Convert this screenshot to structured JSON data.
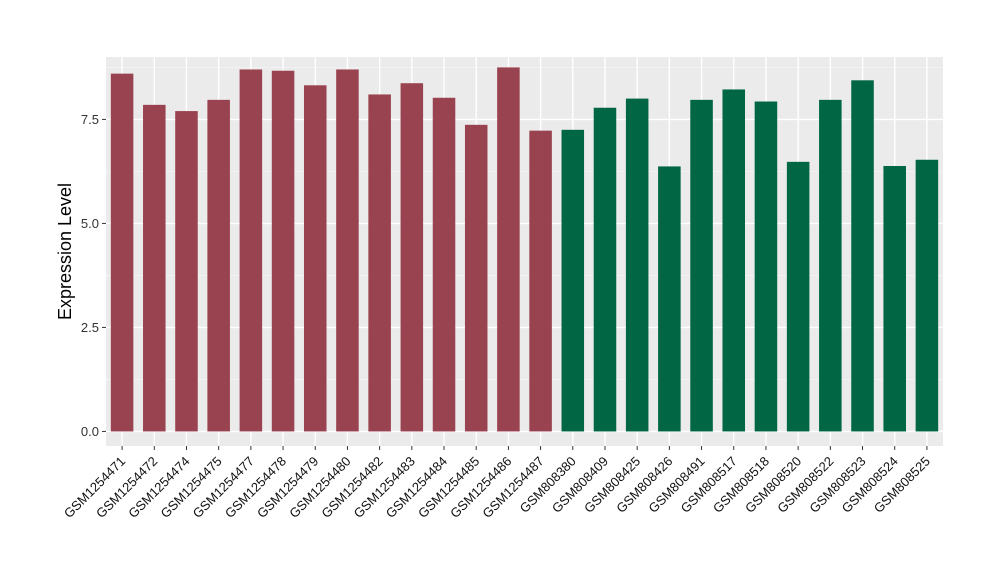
{
  "chart_data": {
    "type": "bar",
    "title": "",
    "xlabel": "",
    "ylabel": "Expression Level",
    "ylim": [
      -0.35,
      9.0
    ],
    "yticks": [
      0.0,
      2.5,
      5.0,
      7.5
    ],
    "ytick_labels": [
      "0.0",
      "2.5",
      "5.0",
      "7.5"
    ],
    "grid": true,
    "legend": "none",
    "categories": [
      "GSM1254471",
      "GSM1254472",
      "GSM1254474",
      "GSM1254475",
      "GSM1254477",
      "GSM1254478",
      "GSM1254479",
      "GSM1254480",
      "GSM1254482",
      "GSM1254483",
      "GSM1254484",
      "GSM1254485",
      "GSM1254486",
      "GSM1254487",
      "GSM808380",
      "GSM808409",
      "GSM808425",
      "GSM808426",
      "GSM808491",
      "GSM808517",
      "GSM808518",
      "GSM808520",
      "GSM808522",
      "GSM808523",
      "GSM808524",
      "GSM808525"
    ],
    "values": [
      8.6,
      7.85,
      7.7,
      7.97,
      8.7,
      8.67,
      8.32,
      8.7,
      8.1,
      8.37,
      8.02,
      7.37,
      8.75,
      7.23,
      7.25,
      7.78,
      8.0,
      6.37,
      7.97,
      8.22,
      7.93,
      6.48,
      7.97,
      8.44,
      6.38,
      6.53
    ],
    "bar_colors": [
      "#9a4350",
      "#9a4350",
      "#9a4350",
      "#9a4350",
      "#9a4350",
      "#9a4350",
      "#9a4350",
      "#9a4350",
      "#9a4350",
      "#9a4350",
      "#9a4350",
      "#9a4350",
      "#9a4350",
      "#9a4350",
      "#006644",
      "#006644",
      "#006644",
      "#006644",
      "#006644",
      "#006644",
      "#006644",
      "#006644",
      "#006644",
      "#006644",
      "#006644",
      "#006644"
    ],
    "colors": {
      "panel_background": "#ebebeb",
      "grid_major": "#ffffff",
      "grid_minor": "#f4f4f4",
      "group_1": "#9a4350",
      "group_2": "#006644"
    }
  }
}
